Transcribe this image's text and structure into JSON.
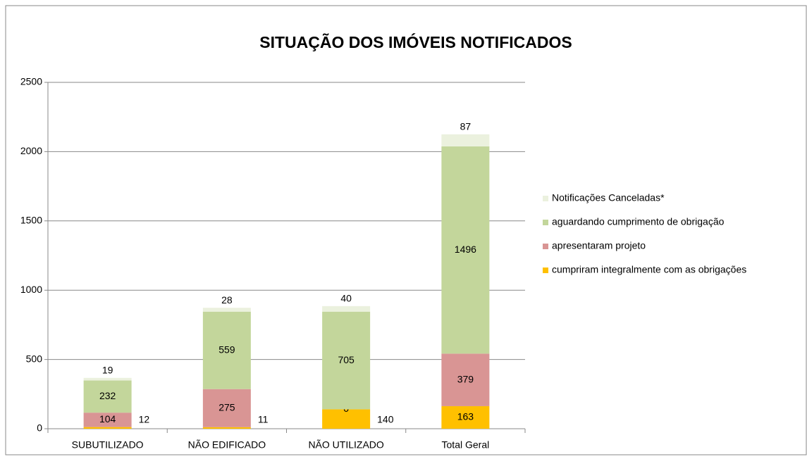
{
  "chart_data": {
    "type": "stacked_bar",
    "title": "SITUAÇÃO DOS IMÓVEIS NOTIFICADOS",
    "categories": [
      "SUBUTILIZADO",
      "NÃO EDIFICADO",
      "NÃO UTILIZADO",
      "Total Geral"
    ],
    "series": [
      {
        "name": "cumpriram integralmente com as obrigações",
        "color": "#ffc000",
        "values": [
          12,
          11,
          140,
          163
        ]
      },
      {
        "name": "apresentaram projeto",
        "color": "#d99594",
        "values": [
          104,
          275,
          0,
          379
        ]
      },
      {
        "name": "aguardando cumprimento de obrigação",
        "color": "#c3d69b",
        "values": [
          232,
          559,
          705,
          1496
        ]
      },
      {
        "name": "Notificações Canceladas*",
        "color": "#ebf1de",
        "values": [
          19,
          28,
          40,
          87
        ]
      }
    ],
    "ylim": [
      0,
      2500
    ],
    "yticks": [
      0,
      500,
      1000,
      1500,
      2000,
      2500
    ],
    "grid": true,
    "legend": "right"
  }
}
